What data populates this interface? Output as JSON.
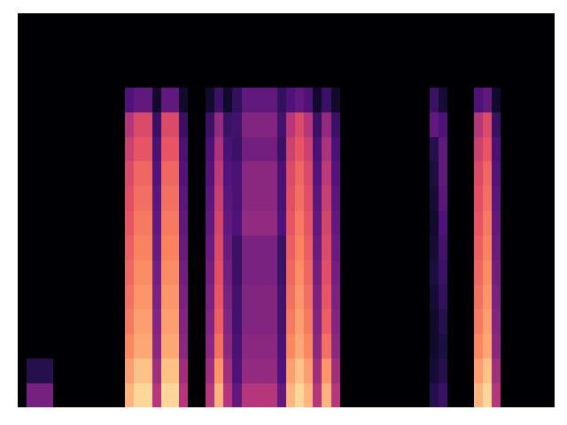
{
  "chart_data": {
    "type": "heatmap",
    "color": "magma",
    "tick_labels": false,
    "xlim": [
      0,
      60
    ],
    "ylim": [
      0,
      16
    ],
    "cells": [
      [
        0,
        0.35,
        0.35,
        0.35,
        0,
        0,
        0,
        0,
        0,
        0,
        0,
        0,
        0.85,
        0.92,
        0.92,
        0.5,
        0.92,
        0.92,
        0.5,
        0,
        0,
        0.5,
        0.85,
        0.5,
        0.3,
        0.5,
        0.5,
        0.5,
        0.5,
        0.3,
        0.85,
        0.92,
        0.85,
        0.5,
        0.85,
        0.5,
        0,
        0,
        0,
        0,
        0,
        0,
        0,
        0,
        0,
        0,
        0.15,
        0.2,
        0,
        0,
        0,
        0.85,
        0.92,
        0.5,
        0,
        0,
        0,
        0,
        0,
        0
      ],
      [
        0,
        0.15,
        0.15,
        0.15,
        0,
        0,
        0,
        0,
        0,
        0,
        0,
        0,
        0.8,
        0.88,
        0.88,
        0.45,
        0.88,
        0.88,
        0.45,
        0,
        0,
        0.45,
        0.78,
        0.45,
        0.25,
        0.42,
        0.42,
        0.42,
        0.42,
        0.25,
        0.8,
        0.88,
        0.8,
        0.45,
        0.78,
        0.45,
        0,
        0,
        0,
        0,
        0,
        0,
        0,
        0,
        0,
        0,
        0.1,
        0.15,
        0,
        0,
        0,
        0.8,
        0.88,
        0.45,
        0,
        0,
        0,
        0,
        0,
        0
      ],
      [
        0,
        0,
        0,
        0,
        0,
        0,
        0,
        0,
        0,
        0,
        0,
        0,
        0.75,
        0.82,
        0.82,
        0.4,
        0.82,
        0.82,
        0.4,
        0,
        0,
        0.4,
        0.7,
        0.4,
        0.24,
        0.4,
        0.4,
        0.4,
        0.4,
        0.24,
        0.75,
        0.82,
        0.75,
        0.4,
        0.7,
        0.4,
        0,
        0,
        0,
        0,
        0,
        0,
        0,
        0,
        0,
        0,
        0.08,
        0.12,
        0,
        0,
        0,
        0.75,
        0.82,
        0.4,
        0,
        0,
        0,
        0,
        0,
        0
      ],
      [
        0,
        0,
        0,
        0,
        0,
        0,
        0,
        0,
        0,
        0,
        0,
        0,
        0.72,
        0.8,
        0.8,
        0.38,
        0.8,
        0.8,
        0.38,
        0,
        0,
        0.38,
        0.66,
        0.38,
        0.22,
        0.38,
        0.38,
        0.38,
        0.38,
        0.22,
        0.72,
        0.8,
        0.72,
        0.38,
        0.66,
        0.38,
        0,
        0,
        0,
        0,
        0,
        0,
        0,
        0,
        0,
        0,
        0.08,
        0.15,
        0,
        0,
        0,
        0.72,
        0.8,
        0.38,
        0,
        0,
        0,
        0,
        0,
        0
      ],
      [
        0,
        0,
        0,
        0,
        0,
        0,
        0,
        0,
        0,
        0,
        0,
        0,
        0.7,
        0.78,
        0.78,
        0.36,
        0.78,
        0.78,
        0.36,
        0,
        0,
        0.36,
        0.64,
        0.36,
        0.22,
        0.38,
        0.38,
        0.38,
        0.38,
        0.22,
        0.7,
        0.78,
        0.7,
        0.36,
        0.64,
        0.36,
        0,
        0,
        0,
        0,
        0,
        0,
        0,
        0,
        0,
        0,
        0.1,
        0.18,
        0,
        0,
        0,
        0.7,
        0.78,
        0.36,
        0,
        0,
        0,
        0,
        0,
        0
      ],
      [
        0,
        0,
        0,
        0,
        0,
        0,
        0,
        0,
        0,
        0,
        0,
        0,
        0.68,
        0.76,
        0.76,
        0.34,
        0.76,
        0.76,
        0.34,
        0,
        0,
        0.34,
        0.62,
        0.34,
        0.2,
        0.36,
        0.36,
        0.36,
        0.36,
        0.2,
        0.68,
        0.76,
        0.68,
        0.34,
        0.62,
        0.34,
        0,
        0,
        0,
        0,
        0,
        0,
        0,
        0,
        0,
        0,
        0.12,
        0.2,
        0,
        0,
        0,
        0.68,
        0.76,
        0.34,
        0,
        0,
        0,
        0,
        0,
        0
      ],
      [
        0,
        0,
        0,
        0,
        0,
        0,
        0,
        0,
        0,
        0,
        0,
        0,
        0.66,
        0.74,
        0.74,
        0.32,
        0.74,
        0.74,
        0.32,
        0,
        0,
        0.32,
        0.6,
        0.32,
        0.2,
        0.36,
        0.36,
        0.36,
        0.36,
        0.2,
        0.66,
        0.74,
        0.66,
        0.32,
        0.6,
        0.32,
        0,
        0,
        0,
        0,
        0,
        0,
        0,
        0,
        0,
        0,
        0.1,
        0.22,
        0,
        0,
        0,
        0.66,
        0.74,
        0.32,
        0,
        0,
        0,
        0,
        0,
        0
      ],
      [
        0,
        0,
        0,
        0,
        0,
        0,
        0,
        0,
        0,
        0,
        0,
        0,
        0.64,
        0.72,
        0.72,
        0.3,
        0.72,
        0.72,
        0.3,
        0,
        0,
        0.3,
        0.58,
        0.3,
        0.25,
        0.42,
        0.42,
        0.42,
        0.42,
        0.25,
        0.64,
        0.72,
        0.64,
        0.3,
        0.58,
        0.3,
        0,
        0,
        0,
        0,
        0,
        0,
        0,
        0,
        0,
        0,
        0.08,
        0.25,
        0,
        0,
        0,
        0.64,
        0.72,
        0.3,
        0,
        0,
        0,
        0,
        0,
        0
      ],
      [
        0,
        0,
        0,
        0,
        0,
        0,
        0,
        0,
        0,
        0,
        0,
        0,
        0.62,
        0.7,
        0.7,
        0.28,
        0.7,
        0.7,
        0.28,
        0,
        0,
        0.28,
        0.55,
        0.28,
        0.24,
        0.4,
        0.4,
        0.4,
        0.4,
        0.24,
        0.62,
        0.7,
        0.62,
        0.28,
        0.55,
        0.28,
        0,
        0,
        0,
        0,
        0,
        0,
        0,
        0,
        0,
        0,
        0.1,
        0.28,
        0,
        0,
        0,
        0.62,
        0.7,
        0.28,
        0,
        0,
        0,
        0,
        0,
        0
      ],
      [
        0,
        0,
        0,
        0,
        0,
        0,
        0,
        0,
        0,
        0,
        0,
        0,
        0.6,
        0.68,
        0.68,
        0.26,
        0.68,
        0.68,
        0.26,
        0,
        0,
        0.26,
        0.52,
        0.26,
        0.24,
        0.4,
        0.4,
        0.4,
        0.4,
        0.24,
        0.6,
        0.68,
        0.6,
        0.26,
        0.52,
        0.26,
        0,
        0,
        0,
        0,
        0,
        0,
        0,
        0,
        0,
        0,
        0.12,
        0.3,
        0,
        0,
        0,
        0.6,
        0.68,
        0.26,
        0,
        0,
        0,
        0,
        0,
        0
      ],
      [
        0,
        0,
        0,
        0,
        0,
        0,
        0,
        0,
        0,
        0,
        0,
        0,
        0.56,
        0.64,
        0.64,
        0.24,
        0.64,
        0.64,
        0.24,
        0,
        0,
        0.24,
        0.48,
        0.24,
        0.2,
        0.34,
        0.34,
        0.34,
        0.34,
        0.2,
        0.56,
        0.64,
        0.56,
        0.24,
        0.48,
        0.24,
        0,
        0,
        0,
        0,
        0,
        0,
        0,
        0,
        0,
        0,
        0.15,
        0.3,
        0,
        0,
        0,
        0.56,
        0.64,
        0.24,
        0,
        0,
        0,
        0,
        0,
        0
      ],
      [
        0,
        0,
        0,
        0,
        0,
        0,
        0,
        0,
        0,
        0,
        0,
        0,
        0.5,
        0.6,
        0.6,
        0.2,
        0.6,
        0.6,
        0.2,
        0,
        0,
        0.2,
        0.42,
        0.2,
        0.22,
        0.38,
        0.38,
        0.38,
        0.38,
        0.22,
        0.5,
        0.6,
        0.5,
        0.2,
        0.42,
        0.2,
        0,
        0,
        0,
        0,
        0,
        0,
        0,
        0,
        0,
        0,
        0.3,
        0.25,
        0,
        0,
        0,
        0.5,
        0.6,
        0.2,
        0,
        0,
        0,
        0,
        0,
        0
      ],
      [
        0,
        0,
        0,
        0,
        0,
        0,
        0,
        0,
        0,
        0,
        0,
        0,
        0.25,
        0.3,
        0.3,
        0.08,
        0.3,
        0.3,
        0.08,
        0,
        0,
        0.08,
        0.2,
        0.08,
        0.18,
        0.3,
        0.3,
        0.3,
        0.3,
        0.18,
        0.25,
        0.3,
        0.25,
        0.08,
        0.2,
        0.08,
        0,
        0,
        0,
        0,
        0,
        0,
        0,
        0,
        0,
        0,
        0.2,
        0.1,
        0,
        0,
        0,
        0.25,
        0.3,
        0.08,
        0,
        0,
        0,
        0,
        0,
        0
      ],
      [
        0,
        0,
        0,
        0,
        0,
        0,
        0,
        0,
        0,
        0,
        0,
        0,
        0,
        0,
        0,
        0,
        0,
        0,
        0,
        0,
        0,
        0,
        0,
        0,
        0,
        0,
        0,
        0,
        0,
        0,
        0,
        0,
        0,
        0,
        0,
        0,
        0,
        0,
        0,
        0,
        0,
        0,
        0,
        0,
        0,
        0,
        0,
        0,
        0,
        0,
        0,
        0,
        0,
        0,
        0,
        0,
        0,
        0,
        0,
        0
      ],
      [
        0,
        0,
        0,
        0,
        0,
        0,
        0,
        0,
        0,
        0,
        0,
        0,
        0,
        0,
        0,
        0,
        0,
        0,
        0,
        0,
        0,
        0,
        0,
        0,
        0,
        0,
        0,
        0,
        0,
        0,
        0,
        0,
        0,
        0,
        0,
        0,
        0,
        0,
        0,
        0,
        0,
        0,
        0,
        0,
        0,
        0,
        0,
        0,
        0,
        0,
        0,
        0,
        0,
        0,
        0,
        0,
        0,
        0,
        0,
        0
      ],
      [
        0,
        0,
        0,
        0,
        0,
        0,
        0,
        0,
        0,
        0,
        0,
        0,
        0,
        0,
        0,
        0,
        0,
        0,
        0,
        0,
        0,
        0,
        0,
        0,
        0,
        0,
        0,
        0,
        0,
        0,
        0,
        0,
        0,
        0,
        0,
        0,
        0,
        0,
        0,
        0,
        0,
        0,
        0,
        0,
        0,
        0,
        0,
        0,
        0,
        0,
        0,
        0,
        0,
        0,
        0,
        0,
        0,
        0,
        0,
        0
      ]
    ]
  }
}
